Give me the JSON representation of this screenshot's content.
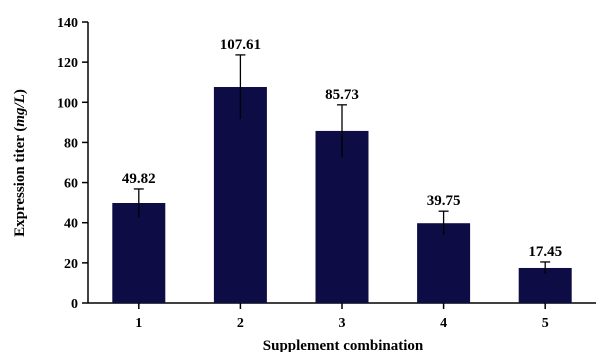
{
  "chart_data": {
    "type": "bar",
    "categories": [
      "1",
      "2",
      "3",
      "4",
      "5"
    ],
    "values": [
      49.82,
      107.61,
      85.73,
      39.75,
      17.45
    ],
    "errors": [
      7,
      16,
      13,
      6,
      3
    ],
    "data_labels": [
      "49.82",
      "107.61",
      "85.73",
      "39.75",
      "17.45"
    ],
    "xlabel": "Supplement combination",
    "ylabel_prefix": "Expression titer (",
    "ylabel_unit": "mg/L",
    "ylabel_suffix": ")",
    "ylim": [
      0,
      140
    ],
    "yticks": [
      0,
      20,
      40,
      60,
      80,
      100,
      120,
      140
    ],
    "grid": false,
    "colors": {
      "bar": "#0d0c45",
      "axis": "#000000"
    }
  }
}
